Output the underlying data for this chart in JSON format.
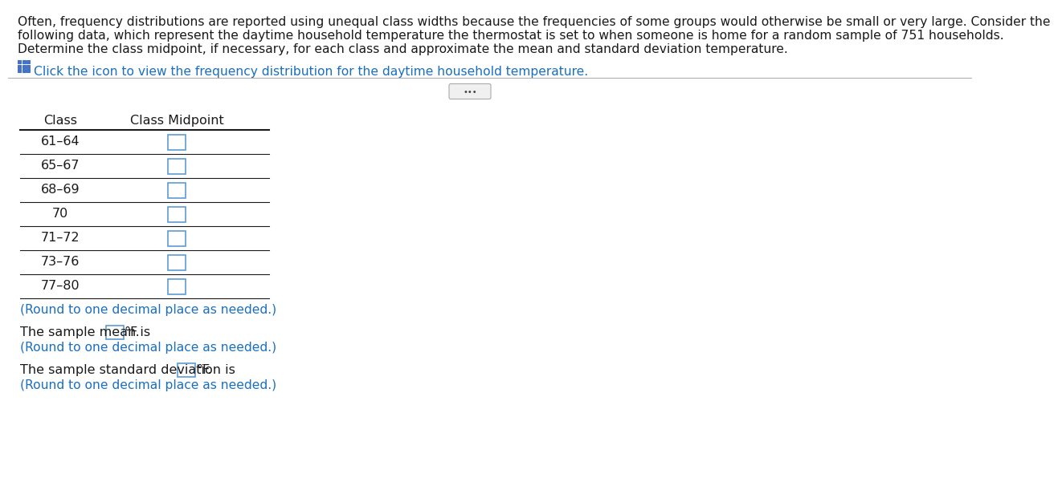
{
  "paragraph_lines": [
    "Often, frequency distributions are reported using unequal class widths because the frequencies of some groups would otherwise be small or very large. Consider the",
    "following data, which represent the daytime household temperature the thermostat is set to when someone is home for a random sample of 751 households.",
    "Determine the class midpoint, if necessary, for each class and approximate the mean and standard deviation temperature."
  ],
  "click_text": "Click the icon to view the frequency distribution for the daytime household temperature.",
  "table_header": [
    "Class",
    "Class Midpoint"
  ],
  "classes": [
    "61–64",
    "65–67",
    "68–69",
    "70",
    "71–72",
    "73–76",
    "77–80"
  ],
  "round_note_table": "(Round to one decimal place as needed.)",
  "mean_text_before": "The sample mean is ",
  "mean_text_after": "°F.",
  "round_note_mean": "(Round to one decimal place as needed.)",
  "std_text_before": "The sample standard deviation is ",
  "std_text_after": "°F.",
  "round_note_std": "(Round to one decimal place as needed.)",
  "text_color": "#1a1a1a",
  "blue_color": "#1a6fbe",
  "icon_color": "#4472C4",
  "box_edge_color": "#5B9BD5",
  "sep_line_color": "#b0b0b0",
  "bg_color": "#ffffff",
  "para_font_size": 11.2,
  "table_font_size": 11.5,
  "note_font_size": 11.2
}
